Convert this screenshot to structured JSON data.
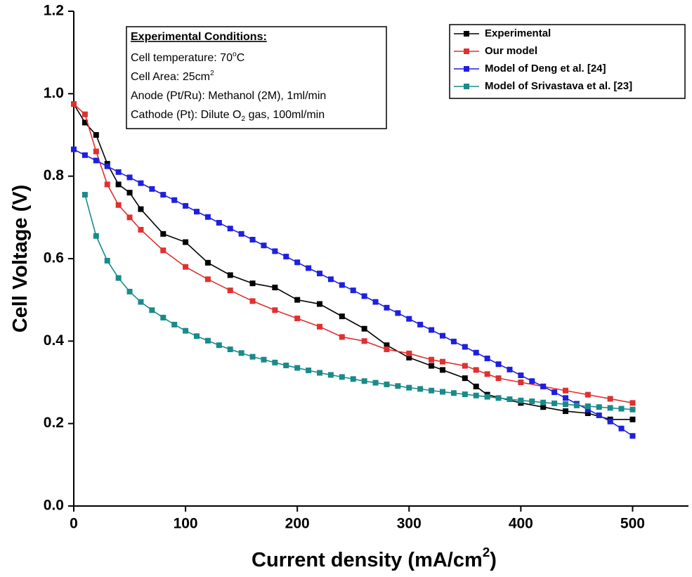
{
  "chart_data": {
    "type": "line",
    "x_label": [
      {
        "text": "Current density (mA/cm"
      },
      {
        "text": "2",
        "baseline": "super"
      },
      {
        "text": ")"
      }
    ],
    "y_label": [
      {
        "text": "Cell Voltage (V)"
      }
    ],
    "xlim": [
      0,
      550
    ],
    "ylim": [
      0,
      1.2
    ],
    "xticks": [
      0,
      100,
      200,
      300,
      400,
      500
    ],
    "yticks": [
      {
        "value": 0,
        "label": "0.0"
      },
      {
        "value": 0.2,
        "label": "0.2"
      },
      {
        "value": 0.4,
        "label": "0.4"
      },
      {
        "value": 0.6,
        "label": "0.6"
      },
      {
        "value": 0.8,
        "label": "0.8"
      },
      {
        "value": 1.0,
        "label": "1.0"
      },
      {
        "value": 1.2,
        "label": "1.2"
      }
    ],
    "legend": "upper right",
    "annotation": {
      "title": "Experimental Conditions:",
      "lines": [
        [
          {
            "text": "Cell temperature: 70"
          },
          {
            "text": "o",
            "baseline": "super"
          },
          {
            "text": "C"
          }
        ],
        [
          {
            "text": "Cell Area: 25cm"
          },
          {
            "text": "2",
            "baseline": "super"
          }
        ],
        [
          {
            "text": "Anode (Pt/Ru): Methanol (2M), 1ml/min"
          }
        ],
        [
          {
            "text": "Cathode (Pt): Dilute O"
          },
          {
            "text": "2",
            "baseline": "sub"
          },
          {
            "text": " gas, 100ml/min"
          }
        ]
      ]
    },
    "series": [
      {
        "name": "Experimental",
        "color": "#000000",
        "x": [
          0,
          10,
          20,
          30,
          40,
          50,
          60,
          80,
          100,
          120,
          140,
          160,
          180,
          200,
          220,
          240,
          260,
          280,
          300,
          320,
          330,
          350,
          360,
          370,
          400,
          420,
          440,
          460,
          480,
          500
        ],
        "values": [
          0.975,
          0.93,
          0.9,
          0.83,
          0.78,
          0.76,
          0.72,
          0.66,
          0.64,
          0.59,
          0.56,
          0.54,
          0.53,
          0.5,
          0.49,
          0.46,
          0.43,
          0.39,
          0.36,
          0.34,
          0.33,
          0.31,
          0.29,
          0.27,
          0.25,
          0.24,
          0.23,
          0.225,
          0.21,
          0.21
        ]
      },
      {
        "name": "Our model",
        "color": "#e0302f",
        "x": [
          0,
          10,
          20,
          30,
          40,
          50,
          60,
          80,
          100,
          120,
          140,
          160,
          180,
          200,
          220,
          240,
          260,
          280,
          300,
          320,
          330,
          350,
          360,
          370,
          380,
          400,
          420,
          440,
          460,
          480,
          500
        ],
        "values": [
          0.975,
          0.95,
          0.86,
          0.78,
          0.73,
          0.7,
          0.67,
          0.62,
          0.58,
          0.55,
          0.523,
          0.497,
          0.475,
          0.455,
          0.435,
          0.41,
          0.4,
          0.38,
          0.37,
          0.355,
          0.35,
          0.34,
          0.33,
          0.32,
          0.31,
          0.3,
          0.29,
          0.28,
          0.27,
          0.26,
          0.25
        ]
      },
      {
        "name": "Model of Deng et al. [24]",
        "color": "#1f1fe0",
        "x": [
          0,
          10,
          20,
          30,
          40,
          50,
          60,
          70,
          80,
          90,
          100,
          110,
          120,
          130,
          140,
          150,
          160,
          170,
          180,
          190,
          200,
          210,
          220,
          230,
          240,
          250,
          260,
          270,
          280,
          290,
          300,
          310,
          320,
          330,
          340,
          350,
          360,
          370,
          380,
          390,
          400,
          410,
          420,
          430,
          440,
          450,
          460,
          470,
          480,
          490,
          500
        ],
        "values": [
          0.865,
          0.851,
          0.838,
          0.824,
          0.81,
          0.797,
          0.783,
          0.769,
          0.755,
          0.742,
          0.728,
          0.714,
          0.701,
          0.687,
          0.673,
          0.66,
          0.646,
          0.632,
          0.618,
          0.605,
          0.591,
          0.577,
          0.564,
          0.55,
          0.536,
          0.523,
          0.509,
          0.495,
          0.481,
          0.468,
          0.454,
          0.44,
          0.427,
          0.413,
          0.399,
          0.386,
          0.372,
          0.358,
          0.344,
          0.331,
          0.317,
          0.303,
          0.29,
          0.276,
          0.262,
          0.248,
          0.234,
          0.22,
          0.205,
          0.188,
          0.17
        ]
      },
      {
        "name": "Model of Srivastava et al. [23]",
        "color": "#1a8a8a",
        "x": [
          10,
          20,
          30,
          40,
          50,
          60,
          70,
          80,
          90,
          100,
          110,
          120,
          130,
          140,
          150,
          160,
          170,
          180,
          190,
          200,
          210,
          220,
          230,
          240,
          250,
          260,
          270,
          280,
          290,
          300,
          310,
          320,
          330,
          340,
          350,
          360,
          370,
          380,
          390,
          400,
          410,
          420,
          430,
          440,
          450,
          460,
          470,
          480,
          490,
          500
        ],
        "values": [
          0.755,
          0.655,
          0.595,
          0.553,
          0.52,
          0.495,
          0.475,
          0.457,
          0.44,
          0.425,
          0.412,
          0.401,
          0.39,
          0.38,
          0.371,
          0.362,
          0.355,
          0.348,
          0.341,
          0.335,
          0.329,
          0.323,
          0.318,
          0.313,
          0.308,
          0.303,
          0.299,
          0.295,
          0.291,
          0.287,
          0.284,
          0.28,
          0.277,
          0.274,
          0.271,
          0.268,
          0.265,
          0.262,
          0.259,
          0.256,
          0.254,
          0.251,
          0.249,
          0.247,
          0.244,
          0.242,
          0.24,
          0.238,
          0.236,
          0.234
        ]
      }
    ]
  }
}
